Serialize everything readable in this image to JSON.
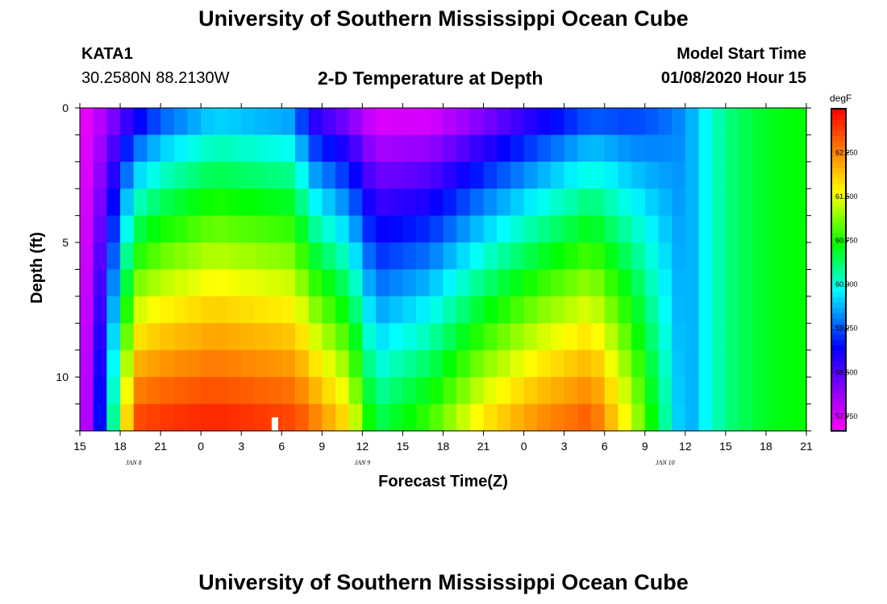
{
  "header": {
    "title": "University of Southern Mississippi Ocean Cube",
    "station": "KATA1",
    "coords": "30.2580N 88.2130W",
    "subtitle": "2-D Temperature at Depth",
    "start_label": "Model Start Time",
    "start_value": "01/08/2020 Hour 15"
  },
  "footer": {
    "title": "University of Southern Mississippi Ocean Cube"
  },
  "chart_data": {
    "type": "heatmap",
    "title": "2-D Temperature at Depth",
    "xlabel": "Forecast Time(Z)",
    "ylabel": "Depth (ft)",
    "x_unit": "hours since model start (01/08/2020 15Z)",
    "xlim": [
      0,
      54
    ],
    "ylim": [
      0,
      12
    ],
    "y_inverted": true,
    "x_tick_labels": [
      "15",
      "18",
      "21",
      "0",
      "3",
      "6",
      "9",
      "12",
      "15",
      "18",
      "21",
      "0",
      "3",
      "6",
      "9",
      "12",
      "15",
      "18",
      "21"
    ],
    "y_ticks": [
      0,
      5,
      10
    ],
    "date_labels": [
      {
        "label": "JAN 8",
        "x": 4
      },
      {
        "label": "JAN 9",
        "x": 21
      },
      {
        "label": "JAN 10",
        "x": 43.5
      }
    ],
    "colorbar": {
      "unit": "degF",
      "min": 57.5,
      "max": 63.0,
      "tick_labels": [
        "57.750",
        "58.500",
        "59.250",
        "60.000",
        "60.750",
        "61.500",
        "62.250"
      ],
      "tick_values": [
        57.75,
        58.5,
        59.25,
        60.0,
        60.75,
        61.5,
        62.25
      ]
    },
    "depth_levels": [
      0.5,
      1.5,
      2.5,
      3.5,
      4.5,
      5.5,
      6.5,
      7.5,
      8.5,
      9.5,
      10.5,
      11.5
    ],
    "transition": [
      {
        "h": 0,
        "ts": 57.5,
        "tb": 57.5
      },
      {
        "h": 2,
        "ts": 58.0,
        "tb": 59.5
      },
      {
        "h": 4,
        "ts": 58.5,
        "tb": 62.7
      },
      {
        "h": 6,
        "ts": 59.0,
        "tb": 62.8
      },
      {
        "h": 10,
        "ts": 59.5,
        "tb": 62.9
      },
      {
        "h": 16,
        "ts": 59.3,
        "tb": 62.7
      },
      {
        "h": 17,
        "ts": 58.5,
        "tb": 62.5
      },
      {
        "h": 20,
        "ts": 58.0,
        "tb": 61.8
      },
      {
        "h": 22,
        "ts": 57.5,
        "tb": 60.5
      },
      {
        "h": 26,
        "ts": 57.5,
        "tb": 61.0
      },
      {
        "h": 30,
        "ts": 58.0,
        "tb": 61.8
      },
      {
        "h": 34,
        "ts": 58.5,
        "tb": 62.3
      },
      {
        "h": 38,
        "ts": 59.0,
        "tb": 62.6
      },
      {
        "h": 41,
        "ts": 59.0,
        "tb": 61.5
      },
      {
        "h": 43,
        "ts": 59.2,
        "tb": 60.5
      },
      {
        "h": 45,
        "ts": 59.5,
        "tb": 59.5
      },
      {
        "h": 48,
        "ts": 60.3,
        "tb": 60.3
      },
      {
        "h": 51,
        "ts": 60.6,
        "tb": 60.6
      },
      {
        "h": 54,
        "ts": 60.7,
        "tb": 60.7
      }
    ],
    "mask": {
      "x": 14.5,
      "y0": 11.5,
      "y1": 12
    }
  }
}
